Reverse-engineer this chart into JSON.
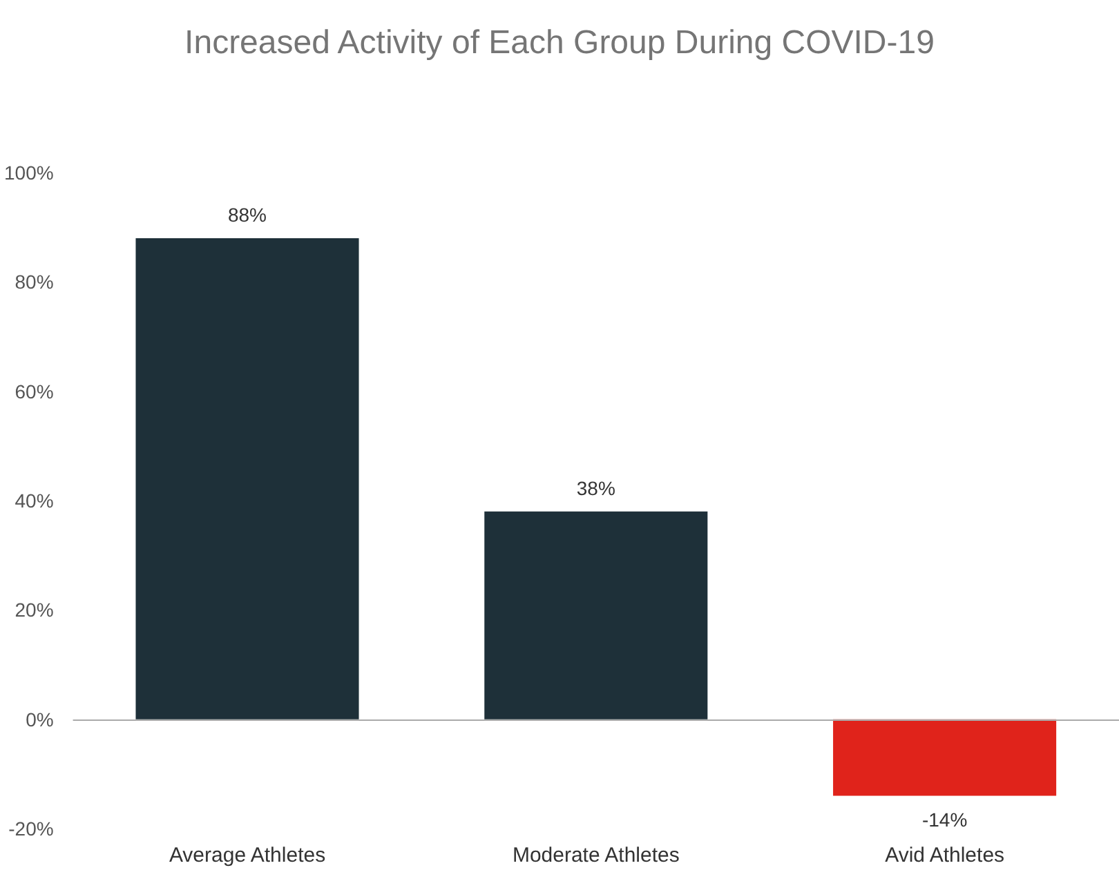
{
  "chart_data": {
    "type": "bar",
    "title": "Increased Activity of Each Group During COVID-19",
    "categories": [
      "Average Athletes",
      "Moderate Athletes",
      "Avid Athletes"
    ],
    "values": [
      88,
      38,
      -14
    ],
    "colors": [
      "#1e3039",
      "#1e3039",
      "#e0231b"
    ],
    "value_labels": [
      "88%",
      "38%",
      "-14%"
    ],
    "ylim": [
      -20,
      100
    ],
    "yticks": [
      {
        "value": -20,
        "label": "-20%"
      },
      {
        "value": 0,
        "label": "0%"
      },
      {
        "value": 20,
        "label": "20%"
      },
      {
        "value": 40,
        "label": "40%"
      },
      {
        "value": 60,
        "label": "60%"
      },
      {
        "value": 80,
        "label": "80%"
      },
      {
        "value": 100,
        "label": "100%"
      }
    ],
    "ref_lines": [
      {
        "axis": "y",
        "value": 0,
        "color": "#aaaaaa"
      }
    ],
    "grid": false
  }
}
